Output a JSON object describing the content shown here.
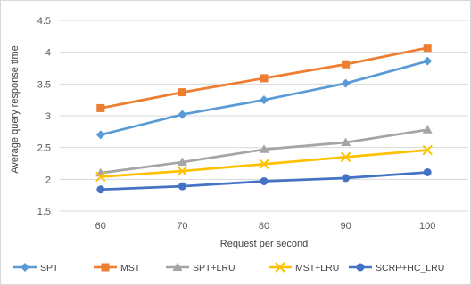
{
  "chart_data": {
    "type": "line",
    "title": "",
    "xlabel": "Request per second",
    "ylabel": "Average query response time",
    "categories": [
      "60",
      "70",
      "80",
      "90",
      "100"
    ],
    "ylim": [
      1.5,
      4.5
    ],
    "yticks": [
      "1.5",
      "2",
      "2.5",
      "3",
      "3.5",
      "4",
      "4.5"
    ],
    "grid": "horizontal",
    "legend_position": "bottom",
    "series": [
      {
        "name": "SPT",
        "color": "#5b9bd5",
        "marker": "diamond",
        "values": [
          2.7,
          3.02,
          3.25,
          3.51,
          3.86
        ]
      },
      {
        "name": "MST",
        "color": "#ed7d31",
        "marker": "square",
        "values": [
          3.12,
          3.37,
          3.59,
          3.81,
          4.07
        ]
      },
      {
        "name": "SPT+LRU",
        "color": "#a5a5a5",
        "marker": "triangle",
        "values": [
          2.1,
          2.27,
          2.47,
          2.58,
          2.78
        ]
      },
      {
        "name": "MST+LRU",
        "color": "#ffc000",
        "marker": "x",
        "values": [
          2.04,
          2.13,
          2.24,
          2.35,
          2.46
        ]
      },
      {
        "name": "SCRP+HC_LRU",
        "color": "#4472c4",
        "marker": "circle",
        "values": [
          1.84,
          1.89,
          1.97,
          2.02,
          2.11
        ]
      }
    ]
  }
}
